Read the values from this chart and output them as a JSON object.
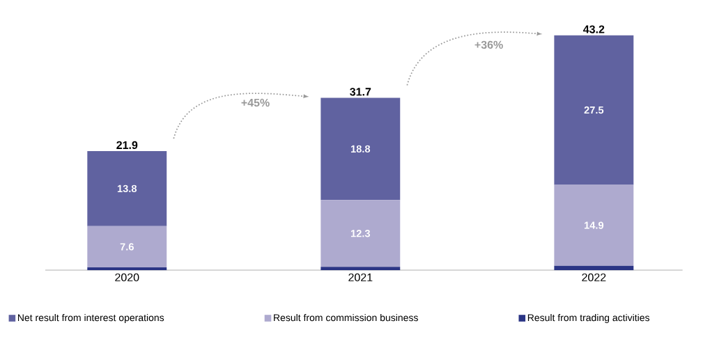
{
  "chart_data": {
    "type": "bar",
    "stacked": true,
    "categories": [
      "2020",
      "2021",
      "2022"
    ],
    "series": [
      {
        "name": "Result from trading activities",
        "color": "#2b3585",
        "values": [
          0.5,
          0.6,
          0.8
        ],
        "value_labels": [
          null,
          null,
          null
        ]
      },
      {
        "name": "Result from commission business",
        "color": "#aeaacf",
        "values": [
          7.6,
          12.3,
          14.9
        ],
        "value_labels": [
          "7.6",
          "12.3",
          "14.9"
        ]
      },
      {
        "name": "Net result from interest operations",
        "color": "#6062a0",
        "values": [
          13.8,
          18.8,
          27.5
        ],
        "value_labels": [
          "13.8",
          "18.8",
          "27.5"
        ]
      }
    ],
    "totals": [
      "21.9",
      "31.7",
      "43.2"
    ],
    "annotations": [
      "+45%",
      "+36%"
    ],
    "tick_labels": "x",
    "legend": "bottom"
  }
}
